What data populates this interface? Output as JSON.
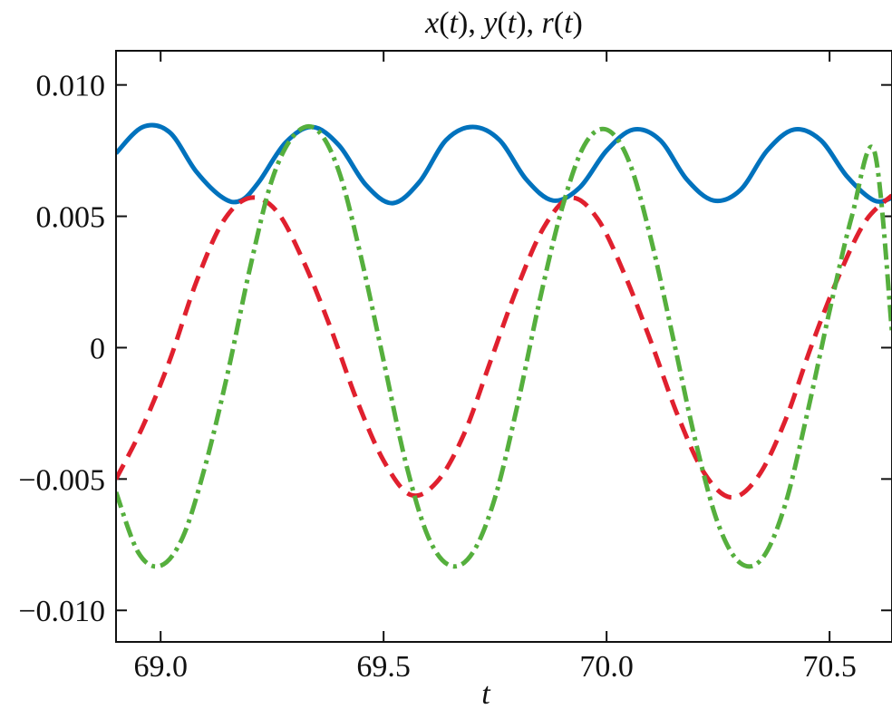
{
  "chart_data": {
    "type": "line",
    "title_parts": [
      {
        "text": "x",
        "italic": true
      },
      {
        "text": "(",
        "italic": false
      },
      {
        "text": "t",
        "italic": true
      },
      {
        "text": "), ",
        "italic": false
      },
      {
        "text": "y",
        "italic": true
      },
      {
        "text": "(",
        "italic": false
      },
      {
        "text": "t",
        "italic": true
      },
      {
        "text": "), ",
        "italic": false
      },
      {
        "text": "r",
        "italic": true
      },
      {
        "text": "(",
        "italic": false
      },
      {
        "text": "t",
        "italic": true
      },
      {
        "text": ")",
        "italic": false
      }
    ],
    "xlabel": "t",
    "ylabel": "",
    "xlim": [
      68.9,
      70.64
    ],
    "ylim": [
      -0.0112,
      0.0113
    ],
    "xticks": [
      69.0,
      69.5,
      70.0,
      70.5
    ],
    "xtick_labels": [
      "69.0",
      "69.5",
      "70.0",
      "70.5"
    ],
    "yticks": [
      -0.01,
      -0.005,
      0,
      0.005,
      0.01
    ],
    "ytick_labels": [
      "−0.010",
      "−0.005",
      "0",
      "0.005",
      "0.010"
    ],
    "grid": false,
    "legend": false,
    "series": [
      {
        "color": "#0072BD",
        "dash": "solid",
        "x": [
          68.9,
          68.96,
          69.02,
          69.08,
          69.14,
          69.18,
          69.22,
          69.28,
          69.34,
          69.4,
          69.46,
          69.52,
          69.58,
          69.64,
          69.7,
          69.76,
          69.82,
          69.88,
          69.94,
          70.0,
          70.06,
          70.12,
          70.18,
          70.24,
          70.3,
          70.36,
          70.42,
          70.48,
          70.54,
          70.6,
          70.64
        ],
        "y": [
          0.0074,
          0.0084,
          0.0082,
          0.0067,
          0.0057,
          0.0056,
          0.0063,
          0.0078,
          0.0084,
          0.0077,
          0.0062,
          0.0055,
          0.0063,
          0.0079,
          0.0084,
          0.0079,
          0.0064,
          0.0056,
          0.0061,
          0.0075,
          0.0083,
          0.0079,
          0.0064,
          0.0056,
          0.006,
          0.0075,
          0.0083,
          0.0079,
          0.0065,
          0.0056,
          0.0057
        ]
      },
      {
        "color": "#E0202E",
        "dash": "dashed",
        "x": [
          68.9,
          68.96,
          69.02,
          69.08,
          69.14,
          69.2,
          69.26,
          69.32,
          69.38,
          69.44,
          69.5,
          69.56,
          69.62,
          69.68,
          69.74,
          69.8,
          69.86,
          69.92,
          69.98,
          70.04,
          70.1,
          70.16,
          70.22,
          70.28,
          70.34,
          70.4,
          70.46,
          70.52,
          70.58,
          70.64
        ],
        "y": [
          -0.005,
          -0.003,
          -0.0005,
          0.0025,
          0.0048,
          0.0057,
          0.0052,
          0.0033,
          0.0008,
          -0.002,
          -0.0043,
          -0.0056,
          -0.0051,
          -0.0033,
          -0.0005,
          0.0023,
          0.0046,
          0.0057,
          0.0049,
          0.0028,
          0.0002,
          -0.0026,
          -0.0048,
          -0.0057,
          -0.0049,
          -0.0028,
          0.0001,
          0.0027,
          0.0048,
          0.0058
        ]
      },
      {
        "color": "#55AF3D",
        "dash": "dashdot",
        "x": [
          68.9,
          68.95,
          69.0,
          69.05,
          69.1,
          69.15,
          69.2,
          69.25,
          69.3,
          69.35,
          69.4,
          69.45,
          69.5,
          69.55,
          69.6,
          69.65,
          69.7,
          69.75,
          69.8,
          69.85,
          69.9,
          69.95,
          70.0,
          70.05,
          70.1,
          70.15,
          70.2,
          70.25,
          70.3,
          70.35,
          70.4,
          70.45,
          70.5,
          70.55,
          70.6,
          70.64
        ],
        "y": [
          -0.0055,
          -0.0078,
          -0.0083,
          -0.0072,
          -0.0045,
          -0.001,
          0.003,
          0.0064,
          0.0081,
          0.0083,
          0.0067,
          0.0034,
          -0.0005,
          -0.0044,
          -0.0072,
          -0.0083,
          -0.0078,
          -0.0057,
          -0.0022,
          0.0018,
          0.0053,
          0.0077,
          0.0083,
          0.0071,
          0.0041,
          0.0003,
          -0.0036,
          -0.0067,
          -0.0082,
          -0.008,
          -0.006,
          -0.0025,
          0.0014,
          0.005,
          0.0075,
          0.0006
        ]
      }
    ]
  }
}
